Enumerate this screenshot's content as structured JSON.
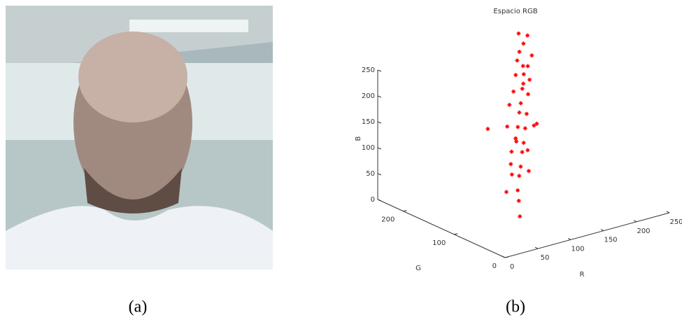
{
  "figure_a": {
    "caption": "(a)"
  },
  "chart_data": {
    "type": "scatter3d",
    "title": "Espacio RGB",
    "xlabel": "R",
    "ylabel": "G",
    "zlabel": "B",
    "xlim": [
      0,
      250
    ],
    "ylim": [
      0,
      250
    ],
    "zlim": [
      0,
      250
    ],
    "xticks": [
      0,
      50,
      100,
      150,
      200,
      250
    ],
    "yticks": [
      0,
      100,
      200
    ],
    "zticks": [
      0,
      50,
      100,
      150,
      200,
      250
    ],
    "series": [
      {
        "color": "#ff0000",
        "x": [
          100,
          110,
          120,
          95,
          130,
          140,
          125,
          150,
          160,
          145,
          170,
          155,
          180,
          165,
          175,
          190,
          185,
          200,
          195,
          205,
          190,
          215,
          200,
          210,
          220,
          205,
          90,
          160,
          170,
          135,
          180,
          150,
          160,
          175,
          185,
          140,
          195,
          130,
          115,
          175
        ],
        "y": [
          100,
          115,
          130,
          120,
          140,
          150,
          150,
          160,
          170,
          165,
          180,
          175,
          190,
          185,
          195,
          200,
          205,
          210,
          215,
          220,
          210,
          225,
          230,
          235,
          240,
          238,
          150,
          160,
          175,
          170,
          170,
          185,
          190,
          205,
          215,
          160,
          195,
          155,
          135,
          190
        ],
        "z": [
          0,
          20,
          30,
          40,
          50,
          60,
          70,
          80,
          90,
          100,
          110,
          120,
          130,
          140,
          150,
          160,
          170,
          180,
          190,
          200,
          210,
          215,
          225,
          235,
          245,
          255,
          150,
          40,
          70,
          130,
          120,
          160,
          180,
          200,
          220,
          110,
          100,
          90,
          60,
          190
        ]
      }
    ]
  },
  "figure_b": {
    "caption": "(b)"
  }
}
